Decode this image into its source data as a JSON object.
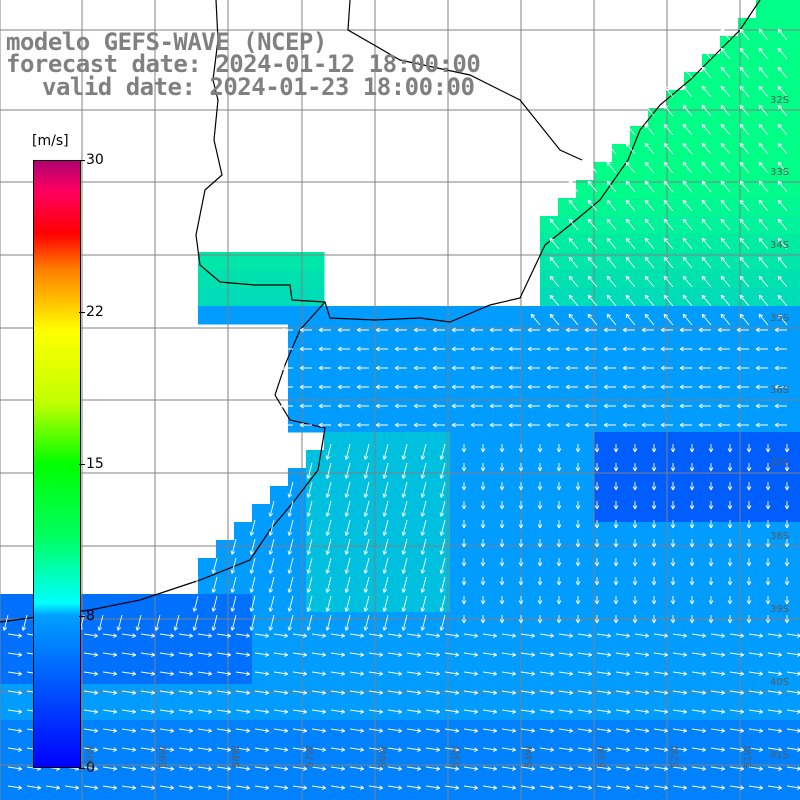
{
  "header": {
    "line1": "modelo GEFS-WAVE (NCEP)",
    "line2": "forecast date: 2024-01-12 18:00:00",
    "line3": "valid date: 2024-01-23 18:00:00"
  },
  "colorbar": {
    "unit": "[m/s]",
    "ticks": [
      "30",
      "22",
      "15",
      "8",
      "0"
    ]
  },
  "lat_labels": [
    "32S",
    "33S",
    "34S",
    "35S",
    "36S",
    "37S",
    "38S",
    "39S",
    "40S",
    "41S"
  ],
  "lon_labels": [
    "60W",
    "59W",
    "58W",
    "57W",
    "56W",
    "55W",
    "54W",
    "53W",
    "52W",
    "51W"
  ],
  "colors": {
    "land": "#ffffff",
    "grid": "#808080",
    "coast": "#000000",
    "arrows": "#ffffff",
    "header_text": "#808080"
  }
}
